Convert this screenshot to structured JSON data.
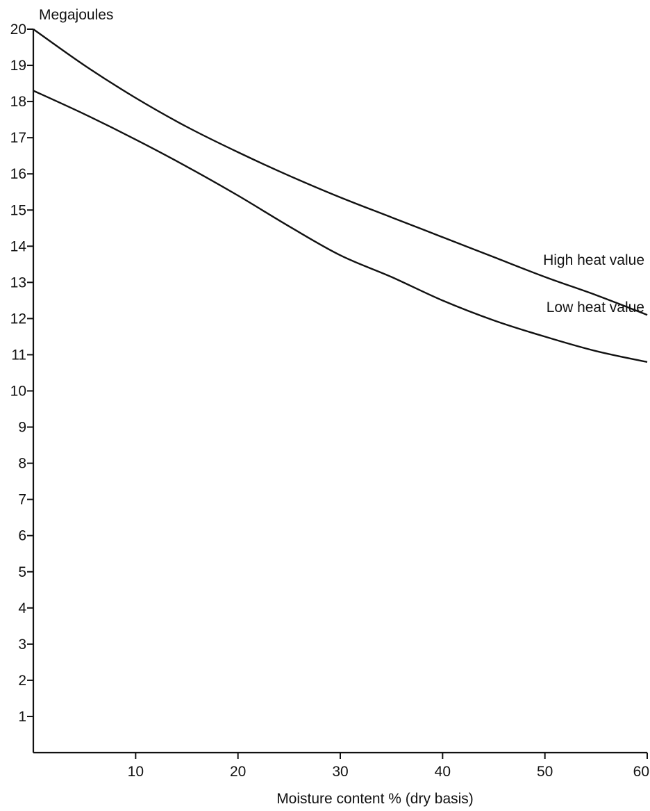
{
  "chart_data": {
    "type": "line",
    "title": "",
    "ylabel": "Megajoules",
    "xlabel": "Moisture content % (dry basis)",
    "xlim": [
      0,
      60
    ],
    "ylim": [
      0,
      20
    ],
    "x_ticks": [
      "10",
      "20",
      "30",
      "40",
      "50",
      "60"
    ],
    "y_ticks": [
      "1",
      "2",
      "3",
      "4",
      "5",
      "6",
      "7",
      "8",
      "9",
      "10",
      "11",
      "12",
      "13",
      "14",
      "15",
      "16",
      "17",
      "18",
      "19",
      "20"
    ],
    "grid": false,
    "line_color": "#111111",
    "series": [
      {
        "name": "High heat value",
        "x": [
          0,
          5,
          10,
          15,
          20,
          25,
          30,
          35,
          40,
          45,
          50,
          55,
          60
        ],
        "y": [
          20.0,
          19.0,
          18.1,
          17.3,
          16.6,
          15.95,
          15.35,
          14.8,
          14.25,
          13.7,
          13.15,
          12.65,
          12.1
        ]
      },
      {
        "name": "Low heat value",
        "x": [
          0,
          5,
          10,
          15,
          20,
          25,
          30,
          35,
          40,
          45,
          50,
          55,
          60
        ],
        "y": [
          18.3,
          17.65,
          16.95,
          16.2,
          15.4,
          14.55,
          13.75,
          13.15,
          12.5,
          11.95,
          11.5,
          11.1,
          10.8
        ]
      }
    ]
  }
}
